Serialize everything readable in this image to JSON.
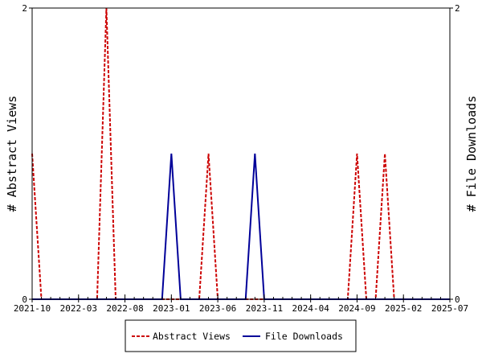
{
  "chart_data": {
    "type": "line",
    "title": "",
    "xlabel": "",
    "ylabel": "# Abstract Views",
    "y2label": "# File Downloads",
    "x_ticks": [
      "2021-10",
      "2022-03",
      "2022-08",
      "2023-01",
      "2023-06",
      "2023-11",
      "2024-04",
      "2024-09",
      "2025-02",
      "2025-07"
    ],
    "xlim": [
      "2021-10",
      "2025-07"
    ],
    "ylim": [
      0,
      2
    ],
    "y2lim": [
      0,
      2
    ],
    "y_ticks": [
      "0",
      "2"
    ],
    "y2_ticks": [
      "0",
      "2"
    ],
    "grid": false,
    "legend_position": "bottom",
    "series": [
      {
        "name": "Abstract Views",
        "axis": "left",
        "color": "#cc0000",
        "style": "dashed",
        "x": [
          "2021-10",
          "2021-11",
          "2022-05",
          "2022-06",
          "2022-07",
          "2023-04",
          "2023-05",
          "2023-06",
          "2024-08",
          "2024-09",
          "2024-10",
          "2024-11",
          "2024-12",
          "2025-01"
        ],
        "y": [
          1,
          0,
          0,
          2,
          0,
          0,
          1,
          0,
          0,
          1,
          0,
          0,
          1,
          0
        ]
      },
      {
        "name": "File Downloads",
        "axis": "right",
        "color": "#000099",
        "style": "solid",
        "x": [
          "2021-10",
          "2022-12",
          "2023-01",
          "2023-02",
          "2023-09",
          "2023-10",
          "2023-11",
          "2025-07"
        ],
        "y": [
          0,
          0,
          1,
          0,
          0,
          1,
          0,
          0
        ]
      }
    ]
  }
}
